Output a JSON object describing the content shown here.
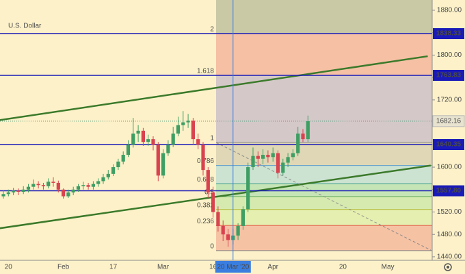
{
  "chart_data": {
    "type": "candlestick",
    "title": "U.S. Dollar",
    "categories": [
      null,
      "20",
      null,
      null,
      null,
      null,
      null,
      null,
      null,
      null,
      null,
      null,
      "Feb",
      null,
      null,
      null,
      null,
      null,
      null,
      null,
      null,
      null,
      "17",
      null,
      null,
      null,
      null,
      null,
      null,
      null,
      null,
      null,
      "Mar",
      null,
      null,
      null,
      null,
      null,
      null,
      null,
      null,
      null,
      "16",
      null,
      null,
      null,
      null,
      null,
      null,
      null,
      null,
      null,
      null,
      null,
      "Apr",
      null,
      null,
      null,
      null,
      null,
      null,
      null,
      null,
      null,
      null,
      null,
      null,
      null,
      "20",
      null,
      null,
      null,
      null,
      null,
      null,
      null,
      null,
      "May",
      null,
      null,
      null,
      null,
      null,
      null,
      null,
      null
    ],
    "open": [
      1548,
      1552,
      1555,
      1558,
      1556,
      1560,
      1565,
      1570,
      1568,
      1566,
      1574,
      1572,
      1560,
      1548,
      1555,
      1560,
      1566,
      1568,
      1565,
      1570,
      1575,
      1582,
      1588,
      1600,
      1610,
      1622,
      1640,
      1660,
      1665,
      1645,
      1650,
      1640,
      1585,
      1625,
      1640,
      1660,
      1675,
      1680,
      1683,
      1650,
      1640,
      1595,
      1555,
      1520,
      1495,
      1480,
      1470,
      1478,
      1495,
      1525,
      1600,
      1620,
      1615,
      1622,
      1618,
      1625,
      1590,
      1608,
      1618,
      1625,
      1660,
      1650,
      null,
      null,
      null,
      null,
      null,
      null,
      null,
      null,
      null,
      null,
      null,
      null,
      null,
      null,
      null,
      null,
      null,
      null,
      null,
      null,
      null,
      null,
      null,
      null
    ],
    "high": [
      1558,
      1560,
      1563,
      1562,
      1566,
      1570,
      1578,
      1575,
      1572,
      1580,
      1582,
      1576,
      1562,
      1560,
      1565,
      1570,
      1574,
      1572,
      1575,
      1580,
      1588,
      1595,
      1605,
      1615,
      1628,
      1648,
      1688,
      1675,
      1670,
      1658,
      1655,
      1645,
      1632,
      1648,
      1672,
      1690,
      1700,
      1695,
      1688,
      1660,
      1645,
      1600,
      1565,
      1530,
      1505,
      1490,
      1490,
      1500,
      1530,
      1608,
      1635,
      1628,
      1632,
      1630,
      1635,
      1630,
      1615,
      1625,
      1632,
      1672,
      1668,
      1692,
      null,
      null,
      null,
      null,
      null,
      null,
      null,
      null,
      null,
      null,
      null,
      null,
      null,
      null,
      null,
      null,
      null,
      null,
      null,
      null,
      null,
      null,
      null,
      null
    ],
    "low": [
      1544,
      1548,
      1550,
      1550,
      1552,
      1555,
      1560,
      1562,
      1560,
      1562,
      1565,
      1555,
      1544,
      1545,
      1550,
      1556,
      1560,
      1560,
      1560,
      1565,
      1570,
      1578,
      1584,
      1595,
      1605,
      1618,
      1635,
      1645,
      1638,
      1638,
      1630,
      1575,
      1580,
      1620,
      1636,
      1655,
      1665,
      1670,
      1640,
      1632,
      1585,
      1545,
      1510,
      1485,
      1468,
      1458,
      1462,
      1470,
      1488,
      1520,
      1595,
      1600,
      1605,
      1608,
      1610,
      1580,
      1585,
      1600,
      1612,
      1620,
      1645,
      1645,
      null,
      null,
      null,
      null,
      null,
      null,
      null,
      null,
      null,
      null,
      null,
      null,
      null,
      null,
      null,
      null,
      null,
      null,
      null,
      null,
      null,
      null,
      null,
      null
    ],
    "close": [
      1552,
      1555,
      1558,
      1556,
      1560,
      1565,
      1570,
      1568,
      1566,
      1574,
      1572,
      1560,
      1548,
      1555,
      1560,
      1566,
      1568,
      1565,
      1570,
      1575,
      1582,
      1588,
      1600,
      1610,
      1622,
      1640,
      1660,
      1665,
      1645,
      1650,
      1640,
      1585,
      1625,
      1640,
      1660,
      1675,
      1680,
      1683,
      1650,
      1640,
      1595,
      1555,
      1520,
      1495,
      1480,
      1470,
      1478,
      1495,
      1525,
      1600,
      1620,
      1615,
      1622,
      1618,
      1625,
      1590,
      1608,
      1618,
      1625,
      1660,
      1650,
      1682,
      null,
      null,
      null,
      null,
      null,
      null,
      null,
      null,
      null,
      null,
      null,
      null,
      null,
      null,
      null,
      null,
      null,
      null,
      null,
      null,
      null,
      null,
      null,
      null
    ],
    "up_color": "#3e9e63",
    "down_color": "#d9424f",
    "ylim": [
      1433.8,
      1898.3
    ],
    "yticks": [
      {
        "value": 1440,
        "label": "1440.00"
      },
      {
        "value": 1480,
        "label": "1480.00"
      },
      {
        "value": 1520,
        "label": "1520.00"
      },
      {
        "value": 1560,
        "label": "1560.00"
      },
      {
        "value": 1600,
        "label": "1600.00"
      },
      {
        "value": 1640,
        "label": "1640.00"
      },
      {
        "value": 1680,
        "label": "1680.00"
      },
      {
        "value": 1720,
        "label": "1720.00"
      },
      {
        "value": 1760,
        "label": "1760.00"
      },
      {
        "value": 1800,
        "label": "1800.00"
      },
      {
        "value": 1840,
        "label": "1840.00"
      },
      {
        "value": 1880,
        "label": "1880.00"
      }
    ],
    "hlines": [
      {
        "value": 1838.33,
        "label": "1838.33"
      },
      {
        "value": 1763.83,
        "label": "1763.83"
      },
      {
        "value": 1640.35,
        "label": "1640.35"
      },
      {
        "value": 1557.8,
        "label": "1557.80"
      }
    ],
    "hline_color": "#1a1ab8",
    "last_price": {
      "value": 1682.16,
      "label": "1682.16"
    },
    "fib": {
      "start": 42.6,
      "levels": [
        0,
        0.236,
        0.382,
        0.5,
        0.618,
        0.786,
        1,
        1.618,
        2
      ],
      "prices": [
        1451,
        1496,
        1524.5,
        1547.5,
        1570.5,
        1603,
        1644,
        1763.83,
        1838.33
      ],
      "label_colors": [
        "#808080",
        "#e0533f",
        "#b3b830",
        "#5aa552",
        "#3f9e8c",
        "#5b9fd0",
        "#888888",
        "#6e87b0",
        "#7f9c76"
      ],
      "band_colors": [
        "#f6c2a4",
        "#e5efb0",
        "#d6eab0",
        "#c6e5b6",
        "#cde3d2",
        "#dfd7b5",
        "#d4c8c8",
        "#f5c0a4"
      ],
      "top_color": "#c9c9a6"
    },
    "trendlines": [
      {
        "from": [
          -0.7,
          1684
        ],
        "to": [
          85,
          1798
        ]
      },
      {
        "from": [
          -0.7,
          1491
        ],
        "to": [
          85.6,
          1603
        ]
      }
    ],
    "trend_color": "#3b7a2a",
    "projection": {
      "from": [
        42.6,
        1644
      ],
      "to": [
        85.6,
        1452
      ]
    },
    "crosshair": {
      "index": 46,
      "label": "20 Mar '20"
    }
  }
}
